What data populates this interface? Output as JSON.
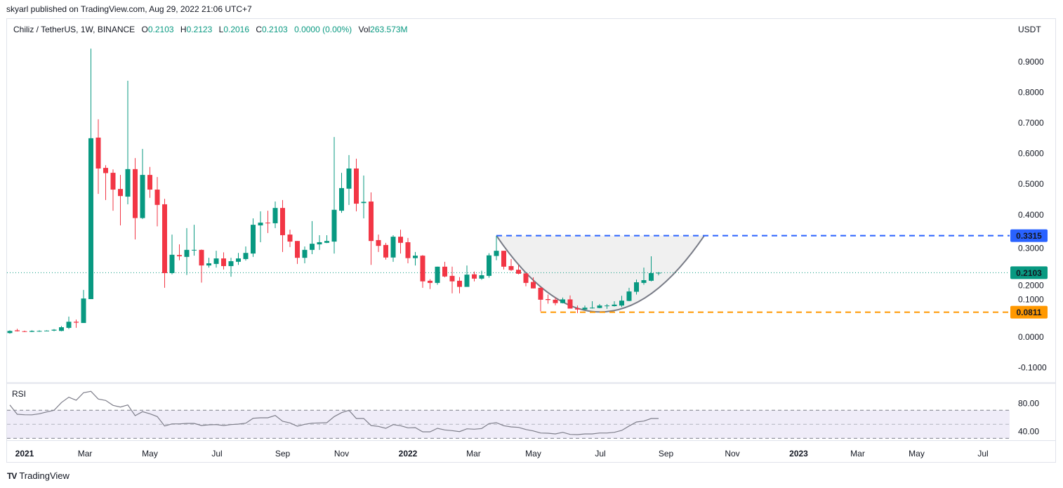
{
  "publisher_line": "skyarl published on TradingView.com, Aug 29, 2022 21:06 UTC+7",
  "legend": {
    "symbol": "Chiliz / TetherUS, 1W, BINANCE",
    "o_label": "O",
    "o_value": "0.2103",
    "h_label": "H",
    "h_value": "0.2123",
    "l_label": "L",
    "l_value": "0.2016",
    "c_label": "C",
    "c_value": "0.2103",
    "change": "0.0000 (0.00%)",
    "vol_label": "Vol",
    "vol_value": "263.573M"
  },
  "price_unit": "USDT",
  "rsi_label": "RSI",
  "logo_text": "TradingView",
  "logo_mark": "TV",
  "colors": {
    "up": "#089981",
    "down": "#f23645",
    "resistance": "#2962ff",
    "support": "#ff9800",
    "cup_line": "#787b86",
    "cup_fill": "#f0f0f0",
    "rsi_line": "#7e7e8a",
    "rsi_band": "#efecf8"
  },
  "chart_data": {
    "type": "candlestick",
    "title": "Chiliz / TetherUS, 1W, BINANCE",
    "ylabel": "USDT",
    "ylim": [
      -0.13,
      1.0
    ],
    "y_ticks": [
      "-0.1000",
      "0.0000",
      "0.1000",
      "0.2000",
      "0.3000",
      "0.4000",
      "0.5000",
      "0.6000",
      "0.7000",
      "0.8000",
      "0.9000"
    ],
    "x_ticks": [
      {
        "label": "2021",
        "index": 2
      },
      {
        "label": "Mar",
        "index": 10.2
      },
      {
        "label": "May",
        "index": 19
      },
      {
        "label": "Jul",
        "index": 28.1
      },
      {
        "label": "Sep",
        "index": 37
      },
      {
        "label": "Nov",
        "index": 45
      },
      {
        "label": "2022",
        "index": 54
      },
      {
        "label": "Mar",
        "index": 62.9
      },
      {
        "label": "May",
        "index": 71
      },
      {
        "label": "Jul",
        "index": 80.1
      },
      {
        "label": "Sep",
        "index": 89
      },
      {
        "label": "Nov",
        "index": 98
      },
      {
        "label": "2023",
        "index": 107
      },
      {
        "label": "Mar",
        "index": 115
      },
      {
        "label": "May",
        "index": 123
      },
      {
        "label": "Jul",
        "index": 132
      }
    ],
    "bold_ticks": [
      "2021",
      "2022",
      "2023"
    ],
    "ohlc": [
      [
        0.013,
        0.022,
        0.011,
        0.02
      ],
      [
        0.022,
        0.027,
        0.018,
        0.019
      ],
      [
        0.019,
        0.021,
        0.016,
        0.017
      ],
      [
        0.017,
        0.022,
        0.016,
        0.02
      ],
      [
        0.02,
        0.022,
        0.017,
        0.02
      ],
      [
        0.02,
        0.022,
        0.019,
        0.021
      ],
      [
        0.021,
        0.026,
        0.019,
        0.024
      ],
      [
        0.02,
        0.036,
        0.019,
        0.032
      ],
      [
        0.03,
        0.067,
        0.026,
        0.05
      ],
      [
        0.05,
        0.057,
        0.03,
        0.047
      ],
      [
        0.046,
        0.154,
        0.046,
        0.126
      ],
      [
        0.124,
        0.943,
        0.124,
        0.65
      ],
      [
        0.652,
        0.712,
        0.468,
        0.551
      ],
      [
        0.553,
        0.562,
        0.448,
        0.536
      ],
      [
        0.537,
        0.548,
        0.413,
        0.482
      ],
      [
        0.484,
        0.53,
        0.365,
        0.461
      ],
      [
        0.459,
        0.838,
        0.434,
        0.549
      ],
      [
        0.549,
        0.585,
        0.319,
        0.389
      ],
      [
        0.389,
        0.615,
        0.386,
        0.53
      ],
      [
        0.53,
        0.556,
        0.455,
        0.482
      ],
      [
        0.482,
        0.523,
        0.362,
        0.432
      ],
      [
        0.434,
        0.452,
        0.161,
        0.209
      ],
      [
        0.209,
        0.335,
        0.205,
        0.269
      ],
      [
        0.268,
        0.303,
        0.251,
        0.264
      ],
      [
        0.262,
        0.356,
        0.203,
        0.285
      ],
      [
        0.283,
        0.367,
        0.266,
        0.285
      ],
      [
        0.285,
        0.286,
        0.178,
        0.234
      ],
      [
        0.234,
        0.259,
        0.227,
        0.241
      ],
      [
        0.239,
        0.282,
        0.227,
        0.257
      ],
      [
        0.257,
        0.277,
        0.221,
        0.232
      ],
      [
        0.232,
        0.259,
        0.197,
        0.248
      ],
      [
        0.246,
        0.275,
        0.236,
        0.257
      ],
      [
        0.255,
        0.296,
        0.25,
        0.275
      ],
      [
        0.273,
        0.388,
        0.262,
        0.367
      ],
      [
        0.365,
        0.411,
        0.31,
        0.374
      ],
      [
        0.374,
        0.413,
        0.34,
        0.372
      ],
      [
        0.372,
        0.443,
        0.356,
        0.422
      ],
      [
        0.422,
        0.448,
        0.278,
        0.333
      ],
      [
        0.335,
        0.351,
        0.294,
        0.312
      ],
      [
        0.314,
        0.314,
        0.239,
        0.259
      ],
      [
        0.259,
        0.296,
        0.241,
        0.285
      ],
      [
        0.285,
        0.379,
        0.271,
        0.305
      ],
      [
        0.303,
        0.333,
        0.285,
        0.31
      ],
      [
        0.308,
        0.333,
        0.307,
        0.314
      ],
      [
        0.312,
        0.654,
        0.273,
        0.416
      ],
      [
        0.413,
        0.537,
        0.406,
        0.487
      ],
      [
        0.485,
        0.595,
        0.432,
        0.551
      ],
      [
        0.551,
        0.583,
        0.411,
        0.436
      ],
      [
        0.438,
        0.528,
        0.388,
        0.442
      ],
      [
        0.443,
        0.473,
        0.236,
        0.314
      ],
      [
        0.317,
        0.335,
        0.278,
        0.298
      ],
      [
        0.301,
        0.308,
        0.253,
        0.26
      ],
      [
        0.26,
        0.333,
        0.246,
        0.328
      ],
      [
        0.328,
        0.351,
        0.273,
        0.308
      ],
      [
        0.31,
        0.324,
        0.241,
        0.258
      ],
      [
        0.258,
        0.278,
        0.234,
        0.266
      ],
      [
        0.266,
        0.268,
        0.161,
        0.182
      ],
      [
        0.184,
        0.189,
        0.157,
        0.177
      ],
      [
        0.177,
        0.23,
        0.171,
        0.23
      ],
      [
        0.23,
        0.246,
        0.195,
        0.198
      ],
      [
        0.2,
        0.23,
        0.143,
        0.182
      ],
      [
        0.184,
        0.196,
        0.143,
        0.164
      ],
      [
        0.164,
        0.234,
        0.164,
        0.204
      ],
      [
        0.205,
        0.214,
        0.182,
        0.191
      ],
      [
        0.191,
        0.217,
        0.187,
        0.202
      ],
      [
        0.2,
        0.274,
        0.194,
        0.267
      ],
      [
        0.265,
        0.331,
        0.251,
        0.282
      ],
      [
        0.282,
        0.282,
        0.221,
        0.23
      ],
      [
        0.232,
        0.255,
        0.216,
        0.219
      ],
      [
        0.22,
        0.236,
        0.205,
        0.207
      ],
      [
        0.208,
        0.21,
        0.166,
        0.177
      ],
      [
        0.18,
        0.195,
        0.159,
        0.159
      ],
      [
        0.161,
        0.163,
        0.084,
        0.122
      ],
      [
        0.124,
        0.139,
        0.109,
        0.121
      ],
      [
        0.122,
        0.129,
        0.104,
        0.111
      ],
      [
        0.111,
        0.129,
        0.11,
        0.123
      ],
      [
        0.123,
        0.136,
        0.093,
        0.093
      ],
      [
        0.094,
        0.103,
        0.078,
        0.09
      ],
      [
        0.09,
        0.103,
        0.089,
        0.096
      ],
      [
        0.095,
        0.117,
        0.093,
        0.096
      ],
      [
        0.095,
        0.108,
        0.094,
        0.103
      ],
      [
        0.101,
        0.108,
        0.092,
        0.103
      ],
      [
        0.101,
        0.117,
        0.1,
        0.106
      ],
      [
        0.103,
        0.135,
        0.098,
        0.119
      ],
      [
        0.118,
        0.161,
        0.117,
        0.149
      ],
      [
        0.148,
        0.188,
        0.139,
        0.179
      ],
      [
        0.177,
        0.227,
        0.171,
        0.186
      ],
      [
        0.184,
        0.264,
        0.182,
        0.209
      ],
      [
        0.2103,
        0.2123,
        0.2016,
        0.2103
      ]
    ],
    "last_price": {
      "value": 0.2103,
      "label": "0.2103"
    },
    "resistance": {
      "value": 0.3315,
      "label": "0.3315",
      "start_index": 66
    },
    "support": {
      "value": 0.0811,
      "label": "0.0811",
      "start_index": 72
    },
    "cup": {
      "start_index": 66,
      "end_index": 94.2,
      "top": 0.3315,
      "bottom": 0.082
    },
    "rsi": {
      "ylim": [
        26,
        104
      ],
      "ticks": [
        "80.00",
        "40.00"
      ],
      "band": [
        30,
        70
      ],
      "mid": 50,
      "values": [
        77.6,
        64.3,
        63.6,
        63.5,
        65,
        67.6,
        70,
        81,
        88.6,
        84.3,
        95,
        97,
        86,
        84,
        77,
        74.6,
        77.6,
        62.3,
        68,
        65,
        61,
        47.6,
        50.6,
        50.6,
        51.3,
        51.3,
        48.3,
        49.3,
        49.6,
        48.3,
        49.6,
        50.3,
        51.6,
        58.6,
        59.3,
        59.3,
        62.6,
        54.3,
        52,
        47.3,
        50,
        51.6,
        52,
        52.3,
        61,
        66.6,
        70,
        58.3,
        58.3,
        48.3,
        47,
        44.3,
        49.6,
        48,
        45,
        45.3,
        39.3,
        39.3,
        44.3,
        42,
        41,
        39.6,
        43.6,
        43,
        44,
        51,
        52.3,
        48,
        46.3,
        45.6,
        42.6,
        40.6,
        37.6,
        37.3,
        36.3,
        38.6,
        35.6,
        35.3,
        36.3,
        36.3,
        37.6,
        37.6,
        38.6,
        41.3,
        47.6,
        53.3,
        54.6,
        58.3,
        58.3
      ]
    }
  }
}
